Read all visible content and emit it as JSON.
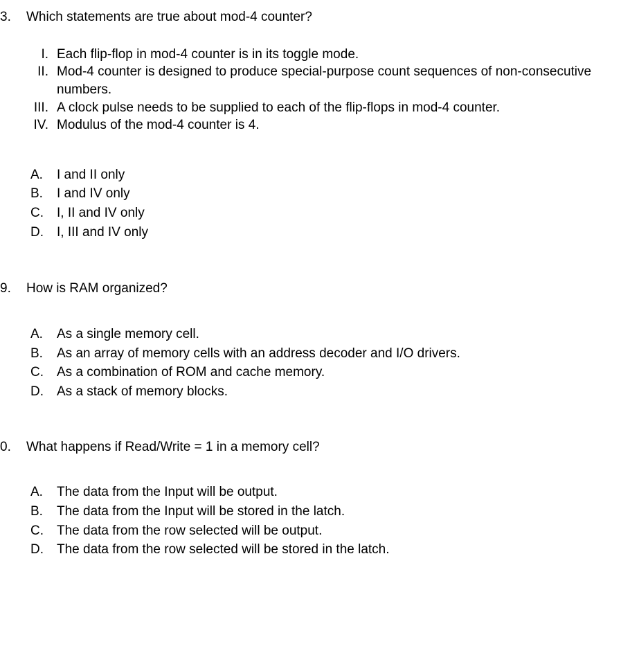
{
  "text_color": "#000000",
  "background_color": "#ffffff",
  "font_family": "Arial, Helvetica, sans-serif",
  "font_size_pt": 14,
  "questions": [
    {
      "number": "3.",
      "prompt": "Which statements are true about mod-4 counter?",
      "statements": [
        {
          "label": "I.",
          "text": "Each flip-flop in mod-4 counter is in its toggle mode."
        },
        {
          "label": "II.",
          "text": "Mod-4 counter is designed to produce special-purpose count sequences of non-consecutive numbers."
        },
        {
          "label": "III.",
          "text": "A clock pulse needs to be supplied to each of the flip-flops in mod-4 counter."
        },
        {
          "label": "IV.",
          "text": "Modulus of the mod-4 counter is 4."
        }
      ],
      "options": [
        {
          "label": "A.",
          "text": "I and II only"
        },
        {
          "label": "B.",
          "text": "I and IV only"
        },
        {
          "label": "C.",
          "text": "I, II and IV only"
        },
        {
          "label": "D.",
          "text": "I, III and IV only"
        }
      ]
    },
    {
      "number": "9.",
      "prompt": "How is RAM organized?",
      "statements": [],
      "options": [
        {
          "label": "A.",
          "text": "As a single memory cell."
        },
        {
          "label": "B.",
          "text": "As an array of memory cells with an address decoder and I/O drivers."
        },
        {
          "label": "C.",
          "text": "As a combination of ROM and cache memory."
        },
        {
          "label": "D.",
          "text": "As a stack of memory blocks."
        }
      ]
    },
    {
      "number": "0.",
      "prompt": "What happens if Read/Write = 1 in a memory cell?",
      "statements": [],
      "options": [
        {
          "label": "A.",
          "text": "The data from the Input will be output."
        },
        {
          "label": "B.",
          "text": "The data from the Input will be stored in the latch."
        },
        {
          "label": "C.",
          "text": "The data from the row selected will be output."
        },
        {
          "label": "D.",
          "text": "The data from the row selected will be stored in the latch."
        }
      ]
    }
  ]
}
